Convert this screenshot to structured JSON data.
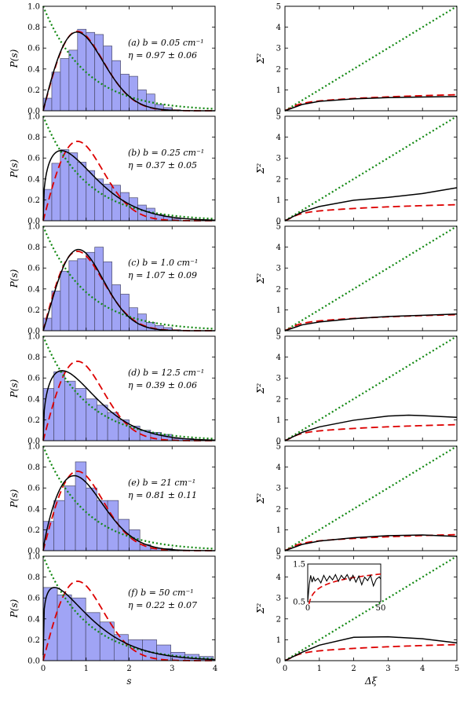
{
  "colors": {
    "bars_fill": "#a0a4f5",
    "bars_edge": "#4a4a6a",
    "black_curve": "#000000",
    "red_curve": "#dd0000",
    "green_curve": "#118811"
  },
  "axes_labels": {
    "left_x": "s",
    "left_y": "P(s)",
    "right_x": "Δξ",
    "right_y": "Σ²"
  },
  "chart_data": {
    "type": "bar",
    "description_series": [
      "histogram",
      "black fit",
      "red dashed GOE",
      "green dotted Poisson"
    ],
    "left_xlim": [
      0,
      4
    ],
    "left_ylim": [
      0,
      1.0
    ],
    "left_xticks": [
      "0",
      "1",
      "2",
      "3",
      "4"
    ],
    "left_yticks": [
      "0.0",
      "0.2",
      "0.4",
      "0.6",
      "0.8",
      "1.0"
    ],
    "right_xlim": [
      0,
      5
    ],
    "right_ylim": [
      0,
      5
    ],
    "right_xticks": [
      "0",
      "1",
      "2",
      "3",
      "4",
      "5"
    ],
    "right_yticks": [
      "0",
      "1",
      "2",
      "3",
      "4",
      "5"
    ],
    "panels": [
      {
        "label_b": "(a) b = 0.05 cm⁻¹",
        "label_eta": "η = 0.97 ± 0.06",
        "eta": 0.97,
        "bin_width": 0.2,
        "hist": [
          0.12,
          0.37,
          0.5,
          0.58,
          0.78,
          0.75,
          0.73,
          0.62,
          0.48,
          0.35,
          0.33,
          0.2,
          0.16,
          0.06,
          0.03,
          0.01
        ],
        "sigma2_curve": [
          [
            0,
            0
          ],
          [
            0.5,
            0.3
          ],
          [
            1,
            0.45
          ],
          [
            2,
            0.57
          ],
          [
            3,
            0.63
          ],
          [
            4,
            0.66
          ],
          [
            5,
            0.68
          ]
        ]
      },
      {
        "label_b": "(b) b = 0.25 cm⁻¹",
        "label_eta": "η = 0.37 ± 0.05",
        "eta": 0.37,
        "bin_width": 0.2,
        "hist": [
          0.3,
          0.55,
          0.68,
          0.65,
          0.56,
          0.48,
          0.4,
          0.35,
          0.34,
          0.27,
          0.22,
          0.15,
          0.12,
          0.06,
          0.04,
          0.02
        ],
        "sigma2_curve": [
          [
            0,
            0
          ],
          [
            0.5,
            0.42
          ],
          [
            1,
            0.68
          ],
          [
            2,
            0.98
          ],
          [
            3,
            1.12
          ],
          [
            4,
            1.3
          ],
          [
            5,
            1.58
          ]
        ]
      },
      {
        "label_b": "(c) b = 1.0 cm⁻¹",
        "label_eta": "η = 1.07 ± 0.09",
        "eta": 1.07,
        "bin_width": 0.2,
        "hist": [
          0.12,
          0.38,
          0.57,
          0.67,
          0.69,
          0.75,
          0.8,
          0.66,
          0.44,
          0.35,
          0.22,
          0.16,
          0.08,
          0.05,
          0.03,
          0.01
        ],
        "sigma2_curve": [
          [
            0,
            0
          ],
          [
            0.5,
            0.28
          ],
          [
            1,
            0.42
          ],
          [
            2,
            0.58
          ],
          [
            3,
            0.68
          ],
          [
            4,
            0.74
          ],
          [
            5,
            0.8
          ]
        ]
      },
      {
        "label_b": "(d) b = 12.5 cm⁻¹",
        "label_eta": "η = 0.39 ± 0.06",
        "eta": 0.39,
        "bin_width": 0.25,
        "hist": [
          0.5,
          0.66,
          0.57,
          0.5,
          0.4,
          0.34,
          0.27,
          0.2,
          0.14,
          0.1,
          0.08,
          0.06,
          0.02,
          0.02
        ],
        "sigma2_curve": [
          [
            0,
            0
          ],
          [
            0.5,
            0.4
          ],
          [
            1,
            0.66
          ],
          [
            2,
            0.98
          ],
          [
            3,
            1.18
          ],
          [
            3.6,
            1.22
          ],
          [
            4,
            1.2
          ],
          [
            5,
            1.12
          ]
        ]
      },
      {
        "label_b": "(e) b = 21 cm⁻¹",
        "label_eta": "η = 0.81 ± 0.11",
        "eta": 0.81,
        "bin_width": 0.25,
        "hist": [
          0.28,
          0.48,
          0.62,
          0.85,
          0.6,
          0.48,
          0.48,
          0.3,
          0.2,
          0.06,
          0.02,
          0.02
        ],
        "sigma2_curve": [
          [
            0,
            0
          ],
          [
            0.5,
            0.3
          ],
          [
            1,
            0.46
          ],
          [
            2,
            0.62
          ],
          [
            3,
            0.72
          ],
          [
            4,
            0.75
          ],
          [
            5,
            0.68
          ]
        ]
      },
      {
        "label_b": "(f) b = 50 cm⁻¹",
        "label_eta": "η = 0.22 ± 0.07",
        "eta": 0.22,
        "bin_width": 0.33,
        "hist": [
          0.7,
          0.63,
          0.6,
          0.46,
          0.37,
          0.25,
          0.2,
          0.2,
          0.15,
          0.08,
          0.06,
          0.04
        ],
        "sigma2_curve": [
          [
            0,
            0
          ],
          [
            0.5,
            0.4
          ],
          [
            1,
            0.74
          ],
          [
            2,
            1.12
          ],
          [
            3,
            1.14
          ],
          [
            4,
            1.05
          ],
          [
            5,
            0.85
          ]
        ],
        "inset": {
          "xlim": [
            0,
            50
          ],
          "ylim": [
            0.5,
            1.5
          ],
          "xticks": [
            "0",
            "50"
          ],
          "yticks": [
            "0.5",
            "1.5"
          ],
          "curve": [
            [
              0,
              0.5
            ],
            [
              1,
              0.95
            ],
            [
              2,
              1.2
            ],
            [
              3,
              1.02
            ],
            [
              4,
              1.15
            ],
            [
              5,
              1.05
            ],
            [
              7,
              1.12
            ],
            [
              9,
              1.0
            ],
            [
              11,
              1.2
            ],
            [
              13,
              1.05
            ],
            [
              15,
              1.18
            ],
            [
              17,
              1.08
            ],
            [
              19,
              1.22
            ],
            [
              21,
              1.04
            ],
            [
              23,
              1.2
            ],
            [
              25,
              1.1
            ],
            [
              27,
              1.22
            ],
            [
              29,
              1.06
            ],
            [
              31,
              1.2
            ],
            [
              33,
              1.02
            ],
            [
              35,
              1.18
            ],
            [
              37,
              0.95
            ],
            [
              39,
              1.15
            ],
            [
              41,
              1.06
            ],
            [
              43,
              1.2
            ],
            [
              45,
              0.92
            ],
            [
              47,
              1.1
            ],
            [
              49,
              1.16
            ],
            [
              50,
              1.1
            ]
          ]
        }
      }
    ]
  }
}
